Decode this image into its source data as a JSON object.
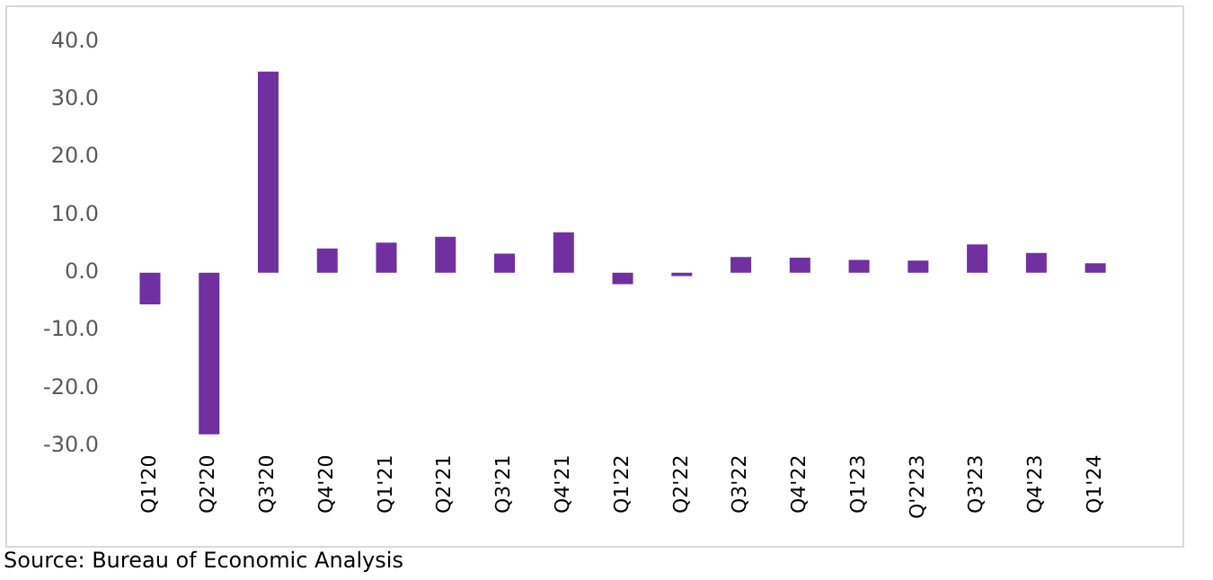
{
  "chart_data": {
    "type": "bar",
    "categories": [
      "Q1'20",
      "Q2'20",
      "Q3'20",
      "Q4'20",
      "Q1'21",
      "Q2'21",
      "Q3'21",
      "Q4'21",
      "Q1'22",
      "Q2'22",
      "Q3'22",
      "Q4'22",
      "Q1'23",
      "Q'2'23",
      "Q3'23",
      "Q4'23",
      "Q1'24"
    ],
    "values": [
      -5.5,
      -28.0,
      34.8,
      4.2,
      5.2,
      6.2,
      3.3,
      7.0,
      -2.0,
      -0.6,
      2.7,
      2.6,
      2.2,
      2.1,
      4.9,
      3.4,
      1.6
    ],
    "color": "#7030a0",
    "ylim": [
      -30,
      40
    ],
    "yticks": [
      {
        "value": -30,
        "label": "-30.0"
      },
      {
        "value": -20,
        "label": "-20.0"
      },
      {
        "value": -10,
        "label": "-10.0"
      },
      {
        "value": 0,
        "label": "0.0"
      },
      {
        "value": 10,
        "label": "10.0"
      },
      {
        "value": 20,
        "label": "20.0"
      },
      {
        "value": 30,
        "label": "30.0"
      },
      {
        "value": 40,
        "label": "40.0"
      }
    ],
    "grid": false,
    "legend": false,
    "annotations": [
      "Source: Bureau of Economic Analysis"
    ]
  }
}
